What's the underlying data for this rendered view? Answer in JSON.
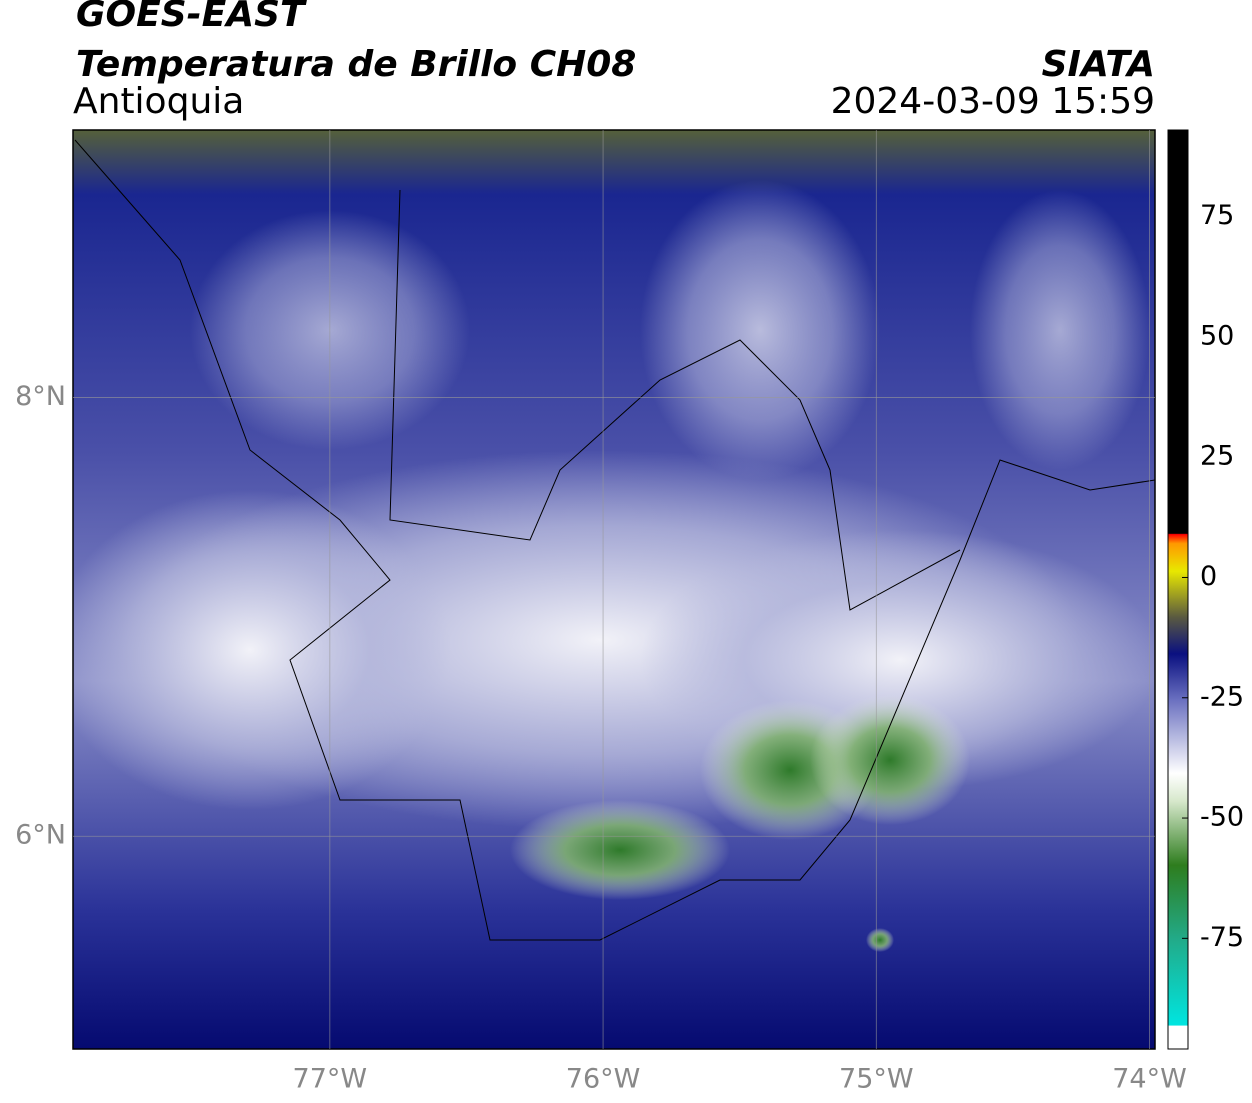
{
  "header": {
    "satellite": "GOES-EAST",
    "product": "Temperatura de Brillo CH08",
    "region": "Antioquia",
    "source": "SIATA",
    "datetime": "2024-03-09 15:59"
  },
  "map": {
    "xlim": [
      -77.94,
      -73.98
    ],
    "ylim": [
      5.03,
      9.22
    ],
    "xticks": [
      {
        "value": -77,
        "label": "77°W"
      },
      {
        "value": -76,
        "label": "76°W"
      },
      {
        "value": -75,
        "label": "75°W"
      },
      {
        "value": -74,
        "label": "74°W"
      }
    ],
    "yticks": [
      {
        "value": 6,
        "label": "6°N"
      },
      {
        "value": 8,
        "label": "8°N"
      }
    ],
    "grid": true
  },
  "colorbar": {
    "lim": [
      -98,
      93
    ],
    "ticks": [
      -75,
      -50,
      -25,
      0,
      25,
      50,
      75
    ]
  }
}
